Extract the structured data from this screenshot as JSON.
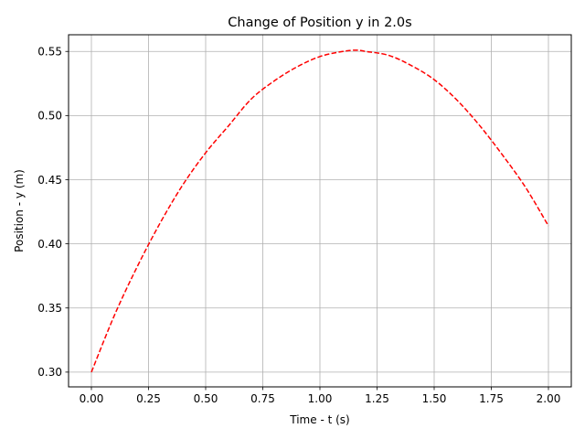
{
  "chart_data": {
    "type": "line",
    "title": "Change of Position y in 2.0s",
    "xlabel": "Time - t (s)",
    "ylabel": "Position - y (m)",
    "xlim": [
      -0.1,
      2.1
    ],
    "ylim": [
      0.2885,
      0.563
    ],
    "grid": true,
    "x_ticks": [
      0.0,
      0.25,
      0.5,
      0.75,
      1.0,
      1.25,
      1.5,
      1.75,
      2.0
    ],
    "x_tick_labels": [
      "0.00",
      "0.25",
      "0.50",
      "0.75",
      "1.00",
      "1.25",
      "1.50",
      "1.75",
      "2.00"
    ],
    "y_ticks": [
      0.3,
      0.35,
      0.4,
      0.45,
      0.5,
      0.55
    ],
    "y_tick_labels": [
      "0.30",
      "0.35",
      "0.40",
      "0.45",
      "0.50",
      "0.55"
    ],
    "series": [
      {
        "color": "#ff0000",
        "line_style": "dashed",
        "x": [
          0.0,
          0.1,
          0.2,
          0.3,
          0.4,
          0.5,
          0.6,
          0.7,
          0.8,
          0.9,
          1.0,
          1.1,
          1.16,
          1.2,
          1.3,
          1.4,
          1.5,
          1.6,
          1.7,
          1.8,
          1.9,
          2.0
        ],
        "y": [
          0.3,
          0.344,
          0.382,
          0.416,
          0.446,
          0.471,
          0.492,
          0.513,
          0.527,
          0.538,
          0.546,
          0.55,
          0.551,
          0.55,
          0.547,
          0.539,
          0.528,
          0.512,
          0.492,
          0.469,
          0.444,
          0.414
        ]
      }
    ]
  }
}
